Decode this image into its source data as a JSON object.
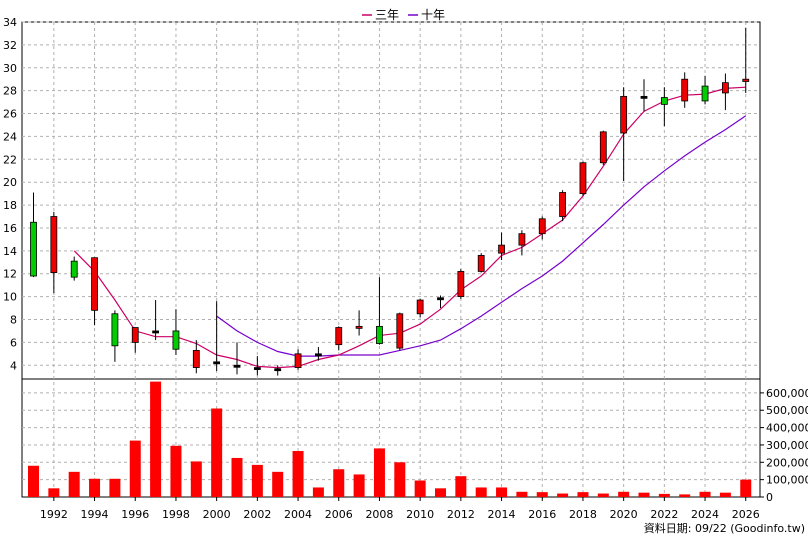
{
  "legend": [
    {
      "label": "三年",
      "color": "#cc0066"
    },
    {
      "label": "十年",
      "color": "#7700cc"
    }
  ],
  "footer": "資料日期: 09/22  (Goodinfo.tw)",
  "chart_data": [
    {
      "type": "candlestick",
      "title": "",
      "years": [
        1991,
        1992,
        1993,
        1994,
        1995,
        1996,
        1997,
        1998,
        1999,
        2000,
        2001,
        2002,
        2003,
        2004,
        2005,
        2006,
        2007,
        2008,
        2009,
        2010,
        2011,
        2012,
        2013,
        2014,
        2015,
        2016,
        2017,
        2018,
        2019,
        2020,
        2021,
        2022,
        2023,
        2024,
        2025,
        2026
      ],
      "open": [
        16.5,
        12.1,
        13.1,
        8.8,
        8.5,
        6.0,
        7.0,
        7.0,
        3.8,
        4.3,
        4.0,
        3.8,
        3.7,
        3.8,
        5.0,
        5.8,
        7.3,
        7.4,
        5.5,
        8.5,
        9.9,
        10.0,
        12.2,
        13.8,
        14.5,
        15.5,
        17.0,
        19.0,
        21.7,
        24.3,
        27.5,
        27.4,
        27.1,
        28.4,
        27.8,
        28.8
      ],
      "close": [
        11.8,
        17.0,
        11.7,
        13.4,
        5.7,
        7.3,
        7.0,
        5.4,
        5.3,
        4.3,
        4.0,
        3.8,
        3.7,
        5.0,
        5.0,
        7.3,
        7.4,
        5.9,
        8.5,
        9.7,
        9.9,
        12.2,
        13.6,
        14.5,
        15.5,
        16.8,
        19.1,
        21.7,
        24.4,
        27.5,
        27.5,
        26.8,
        29.0,
        27.1,
        28.7,
        29.0
      ],
      "high": [
        19.1,
        17.4,
        13.5,
        13.4,
        8.8,
        7.3,
        9.7,
        8.9,
        6.2,
        9.6,
        6.0,
        4.8,
        4.0,
        5.4,
        5.6,
        7.4,
        8.8,
        11.7,
        8.6,
        9.8,
        10.1,
        12.4,
        13.8,
        15.6,
        15.8,
        17.0,
        19.3,
        21.8,
        24.5,
        28.3,
        29.0,
        28.3,
        29.6,
        29.3,
        29.5,
        33.5
      ],
      "low": [
        11.7,
        10.3,
        11.4,
        7.5,
        4.3,
        5.1,
        6.2,
        4.9,
        3.3,
        3.5,
        3.2,
        3.1,
        3.1,
        3.6,
        4.4,
        5.3,
        6.6,
        5.8,
        5.3,
        8.2,
        9.0,
        9.8,
        12.1,
        13.2,
        13.6,
        15.0,
        16.6,
        18.8,
        21.5,
        20.1,
        26.2,
        24.9,
        26.5,
        26.8,
        26.3,
        27.8
      ],
      "ma3": [
        null,
        null,
        14.0,
        12.2,
        9.7,
        7.0,
        6.5,
        6.5,
        5.9,
        4.9,
        4.5,
        3.9,
        3.8,
        3.9,
        4.5,
        4.9,
        5.7,
        6.6,
        6.8,
        7.6,
        8.9,
        10.6,
        11.8,
        13.6,
        14.3,
        15.5,
        16.7,
        18.8,
        21.4,
        24.2,
        26.2,
        27.1,
        27.6,
        27.7,
        28.2,
        28.3
      ],
      "ma10": [
        null,
        null,
        null,
        null,
        null,
        null,
        null,
        null,
        null,
        8.3,
        7.0,
        6.0,
        5.2,
        4.8,
        4.8,
        4.9,
        4.9,
        4.9,
        5.3,
        5.7,
        6.2,
        7.2,
        8.3,
        9.5,
        10.7,
        11.8,
        13.1,
        14.7,
        16.3,
        18.0,
        19.6,
        21.0,
        22.3,
        23.5,
        24.6,
        25.8
      ],
      "ylim": [
        2.8,
        34
      ],
      "yticks": [
        4,
        6,
        8,
        10,
        12,
        14,
        16,
        18,
        20,
        22,
        24,
        26,
        28,
        30,
        32,
        34
      ],
      "grid": true,
      "legend_position": "top-center"
    },
    {
      "type": "bar",
      "years": [
        1991,
        1992,
        1993,
        1994,
        1995,
        1996,
        1997,
        1998,
        1999,
        2000,
        2001,
        2002,
        2003,
        2004,
        2005,
        2006,
        2007,
        2008,
        2009,
        2010,
        2011,
        2012,
        2013,
        2014,
        2015,
        2016,
        2017,
        2018,
        2019,
        2020,
        2021,
        2022,
        2023,
        2024,
        2025,
        2026
      ],
      "values": [
        180000,
        50000,
        145000,
        105000,
        105000,
        325000,
        665000,
        295000,
        205000,
        510000,
        225000,
        185000,
        145000,
        265000,
        55000,
        160000,
        130000,
        280000,
        200000,
        95000,
        50000,
        120000,
        55000,
        55000,
        30000,
        28000,
        20000,
        28000,
        20000,
        30000,
        25000,
        18000,
        15000,
        30000,
        25000,
        100000
      ],
      "yticks": [
        0,
        100000,
        200000,
        300000,
        400000,
        500000,
        600000
      ],
      "ytick_labels": [
        "0",
        "100,000",
        "200,000",
        "300,000",
        "400,000",
        "500,000",
        "600,000"
      ],
      "ylim": [
        0,
        680000
      ],
      "color": "#ff0000"
    }
  ],
  "x_tick_labels": [
    "1992",
    "1994",
    "1996",
    "1998",
    "2000",
    "2002",
    "2004",
    "2006",
    "2008",
    "2010",
    "2012",
    "2014",
    "2016",
    "2018",
    "2020",
    "2022",
    "2024",
    "2026"
  ]
}
